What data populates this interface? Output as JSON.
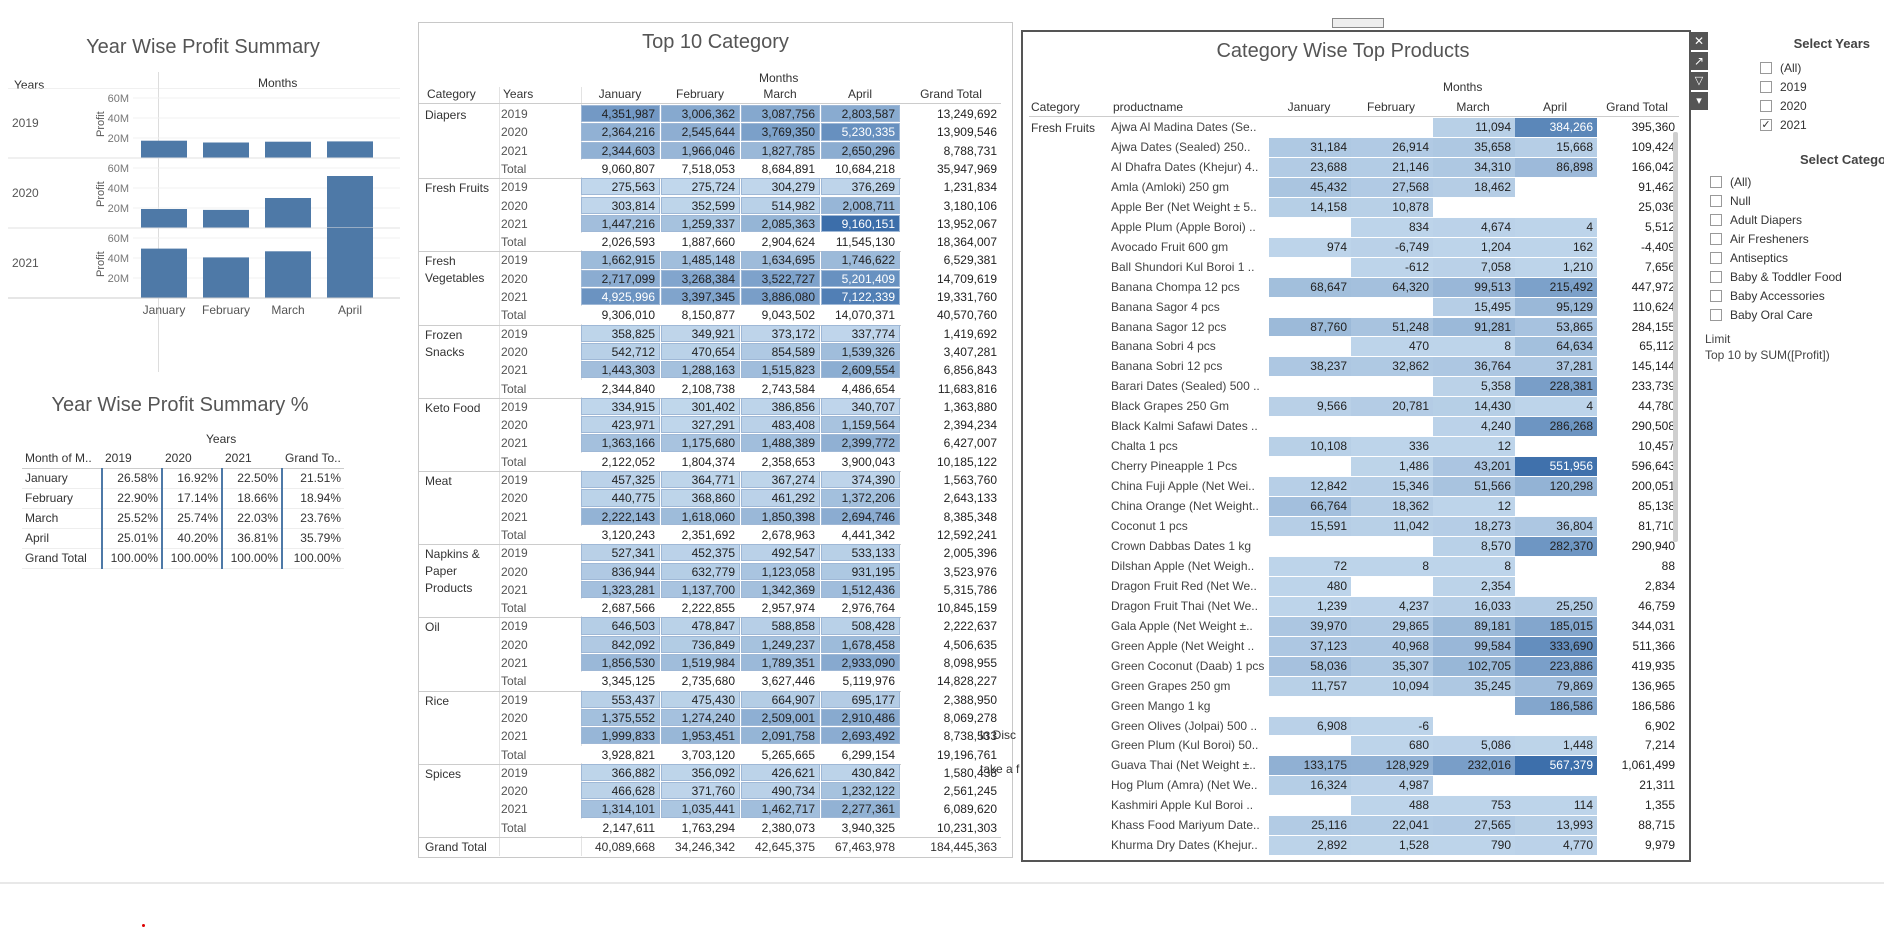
{
  "profit_summary": {
    "title": "Year Wise  Profit Summary",
    "col_years": "Years",
    "col_months": "Months",
    "y_label": "Profit",
    "y_ticks": [
      "60M",
      "40M",
      "20M"
    ],
    "months": [
      "January",
      "February",
      "March",
      "April"
    ],
    "years": [
      "2019",
      "2020",
      "2021"
    ],
    "bar_color": "#4e79a7"
  },
  "chart_data": {
    "type": "bar",
    "title": "Year Wise  Profit Summary",
    "ylabel": "Profit",
    "ylim": [
      0,
      70000000
    ],
    "categories": [
      "January",
      "February",
      "March",
      "April"
    ],
    "series": [
      {
        "name": "2019",
        "values": [
          17300000,
          15500000,
          16300000,
          16600000
        ]
      },
      {
        "name": "2020",
        "values": [
          19000000,
          18100000,
          30000000,
          52000000
        ]
      },
      {
        "name": "2021",
        "values": [
          49400000,
          40600000,
          46700000,
          73000000
        ]
      }
    ]
  },
  "pct_summary": {
    "title": "Year Wise  Profit Summary %",
    "years_label": "Years",
    "headers": [
      "Month of M..",
      "2019",
      "2020",
      "2021",
      "Grand To.."
    ],
    "rows": [
      [
        "January",
        "26.58%",
        "16.92%",
        "22.50%",
        "21.51%"
      ],
      [
        "February",
        "22.90%",
        "17.14%",
        "18.66%",
        "18.94%"
      ],
      [
        "March",
        "25.52%",
        "25.74%",
        "22.03%",
        "23.76%"
      ],
      [
        "April",
        "25.01%",
        "40.20%",
        "36.81%",
        "35.79%"
      ],
      [
        "Grand Total",
        "100.00%",
        "100.00%",
        "100.00%",
        "100.00%"
      ]
    ]
  },
  "top10": {
    "title": "Top 10 Category",
    "months_label": "Months",
    "headers": [
      "Category",
      "Years",
      "January",
      "February",
      "March",
      "April",
      "Grand Total"
    ],
    "groups": [
      {
        "category": "Diapers",
        "rows": [
          [
            "2019",
            "4,351,987",
            "3,006,362",
            "3,087,756",
            "2,803,587",
            "13,249,692"
          ],
          [
            "2020",
            "2,364,216",
            "2,545,644",
            "3,769,350",
            "5,230,335",
            "13,909,546"
          ],
          [
            "2021",
            "2,344,603",
            "1,966,046",
            "1,827,785",
            "2,650,296",
            "8,788,731"
          ],
          [
            "Total",
            "9,060,807",
            "7,518,053",
            "8,684,891",
            "10,684,218",
            "35,947,969"
          ]
        ]
      },
      {
        "category": "Fresh Fruits",
        "rows": [
          [
            "2019",
            "275,563",
            "275,724",
            "304,279",
            "376,269",
            "1,231,834"
          ],
          [
            "2020",
            "303,814",
            "352,599",
            "514,982",
            "2,008,711",
            "3,180,106"
          ],
          [
            "2021",
            "1,447,216",
            "1,259,337",
            "2,085,363",
            "9,160,151",
            "13,952,067"
          ],
          [
            "Total",
            "2,026,593",
            "1,887,660",
            "2,904,624",
            "11,545,130",
            "18,364,007"
          ]
        ]
      },
      {
        "category": "Fresh Vegetables",
        "rows": [
          [
            "2019",
            "1,662,915",
            "1,485,148",
            "1,634,695",
            "1,746,622",
            "6,529,381"
          ],
          [
            "2020",
            "2,717,099",
            "3,268,384",
            "3,522,727",
            "5,201,409",
            "14,709,619"
          ],
          [
            "2021",
            "4,925,996",
            "3,397,345",
            "3,886,080",
            "7,122,339",
            "19,331,760"
          ],
          [
            "Total",
            "9,306,010",
            "8,150,877",
            "9,043,502",
            "14,070,371",
            "40,570,760"
          ]
        ]
      },
      {
        "category": "Frozen Snacks",
        "rows": [
          [
            "2019",
            "358,825",
            "349,921",
            "373,172",
            "337,774",
            "1,419,692"
          ],
          [
            "2020",
            "542,712",
            "470,654",
            "854,589",
            "1,539,326",
            "3,407,281"
          ],
          [
            "2021",
            "1,443,303",
            "1,288,163",
            "1,515,823",
            "2,609,554",
            "6,856,843"
          ],
          [
            "Total",
            "2,344,840",
            "2,108,738",
            "2,743,584",
            "4,486,654",
            "11,683,816"
          ]
        ]
      },
      {
        "category": "Keto Food",
        "rows": [
          [
            "2019",
            "334,915",
            "301,402",
            "386,856",
            "340,707",
            "1,363,880"
          ],
          [
            "2020",
            "423,971",
            "327,291",
            "483,408",
            "1,159,564",
            "2,394,234"
          ],
          [
            "2021",
            "1,363,166",
            "1,175,680",
            "1,488,389",
            "2,399,772",
            "6,427,007"
          ],
          [
            "Total",
            "2,122,052",
            "1,804,374",
            "2,358,653",
            "3,900,043",
            "10,185,122"
          ]
        ]
      },
      {
        "category": "Meat",
        "rows": [
          [
            "2019",
            "457,325",
            "364,771",
            "367,274",
            "374,390",
            "1,563,760"
          ],
          [
            "2020",
            "440,775",
            "368,860",
            "461,292",
            "1,372,206",
            "2,643,133"
          ],
          [
            "2021",
            "2,222,143",
            "1,618,060",
            "1,850,398",
            "2,694,746",
            "8,385,348"
          ],
          [
            "Total",
            "3,120,243",
            "2,351,692",
            "2,678,963",
            "4,441,342",
            "12,592,241"
          ]
        ]
      },
      {
        "category": "Napkins & Paper Products",
        "rows": [
          [
            "2019",
            "527,341",
            "452,375",
            "492,547",
            "533,133",
            "2,005,396"
          ],
          [
            "2020",
            "836,944",
            "632,779",
            "1,123,058",
            "931,195",
            "3,523,976"
          ],
          [
            "2021",
            "1,323,281",
            "1,137,700",
            "1,342,369",
            "1,512,436",
            "5,315,786"
          ],
          [
            "Total",
            "2,687,566",
            "2,222,855",
            "2,957,974",
            "2,976,764",
            "10,845,159"
          ]
        ]
      },
      {
        "category": "Oil",
        "rows": [
          [
            "2019",
            "646,503",
            "478,847",
            "588,858",
            "508,428",
            "2,222,637"
          ],
          [
            "2020",
            "842,092",
            "736,849",
            "1,249,237",
            "1,678,458",
            "4,506,635"
          ],
          [
            "2021",
            "1,856,530",
            "1,519,984",
            "1,789,351",
            "2,933,090",
            "8,098,955"
          ],
          [
            "Total",
            "3,345,125",
            "2,735,680",
            "3,627,446",
            "5,119,976",
            "14,828,227"
          ]
        ]
      },
      {
        "category": "Rice",
        "rows": [
          [
            "2019",
            "553,437",
            "475,430",
            "664,907",
            "695,177",
            "2,388,950"
          ],
          [
            "2020",
            "1,375,552",
            "1,274,240",
            "2,509,001",
            "2,910,486",
            "8,069,278"
          ],
          [
            "2021",
            "1,999,833",
            "1,953,451",
            "2,091,758",
            "2,693,492",
            "8,738,533"
          ],
          [
            "Total",
            "3,928,821",
            "3,703,120",
            "5,265,665",
            "6,299,154",
            "19,196,761"
          ]
        ]
      },
      {
        "category": "Spices",
        "rows": [
          [
            "2019",
            "366,882",
            "356,092",
            "426,621",
            "430,842",
            "1,580,438"
          ],
          [
            "2020",
            "466,628",
            "371,760",
            "490,734",
            "1,232,122",
            "2,561,245"
          ],
          [
            "2021",
            "1,314,101",
            "1,035,441",
            "1,462,717",
            "2,277,361",
            "6,089,620"
          ],
          [
            "Total",
            "2,147,611",
            "1,763,294",
            "2,380,073",
            "3,940,325",
            "10,231,303"
          ]
        ]
      }
    ],
    "grand_total": [
      "Grand Total",
      "40,089,668",
      "34,246,342",
      "42,645,375",
      "67,463,978",
      "184,445,363"
    ],
    "overflow_text_1": "in Disc",
    "overflow_text_2": "take a f"
  },
  "products": {
    "title": "Category Wise Top Products",
    "months_label": "Months",
    "headers": [
      "Category",
      "productname",
      "January",
      "February",
      "March",
      "April",
      "Grand Total"
    ],
    "category": "Fresh Fruits",
    "rows": [
      [
        "Ajwa Al Madina Dates (Se..",
        "",
        "",
        "11,094",
        "384,266",
        "395,360"
      ],
      [
        "Ajwa Dates (Sealed)  250..",
        "31,184",
        "26,914",
        "35,658",
        "15,668",
        "109,424"
      ],
      [
        "Al Dhafra Dates (Khejur) 4..",
        "23,688",
        "21,146",
        "34,310",
        "86,898",
        "166,042"
      ],
      [
        "Amla (Amloki) 250 gm",
        "45,432",
        "27,568",
        "18,462",
        "",
        "91,462"
      ],
      [
        "Apple Ber (Net Weight ± 5..",
        "14,158",
        "10,878",
        "",
        "",
        "25,036"
      ],
      [
        "Apple Plum (Apple Boroi) ..",
        "",
        "834",
        "4,674",
        "4",
        "5,512"
      ],
      [
        "Avocado Fruit 600 gm",
        "974",
        "-6,749",
        "1,204",
        "162",
        "-4,409"
      ],
      [
        "Ball Shundori Kul Boroi 1 ..",
        "",
        "-612",
        "7,058",
        "1,210",
        "7,656"
      ],
      [
        "Banana Chompa 12 pcs",
        "68,647",
        "64,320",
        "99,513",
        "215,492",
        "447,972"
      ],
      [
        "Banana Sagor 4 pcs",
        "",
        "",
        "15,495",
        "95,129",
        "110,624"
      ],
      [
        "Banana Sagor 12 pcs",
        "87,760",
        "51,248",
        "91,281",
        "53,865",
        "284,155"
      ],
      [
        "Banana Sobri 4 pcs",
        "",
        "470",
        "8",
        "64,634",
        "65,112"
      ],
      [
        "Banana Sobri 12 pcs",
        "38,237",
        "32,862",
        "36,764",
        "37,281",
        "145,144"
      ],
      [
        "Barari Dates (Sealed) 500 ..",
        "",
        "",
        "5,358",
        "228,381",
        "233,739"
      ],
      [
        "Black Grapes 250 Gm",
        "9,566",
        "20,781",
        "14,430",
        "4",
        "44,780"
      ],
      [
        "Black Kalmi Safawi Dates ..",
        "",
        "",
        "4,240",
        "286,268",
        "290,508"
      ],
      [
        "Chalta 1 pcs",
        "10,108",
        "336",
        "12",
        "",
        "10,457"
      ],
      [
        "Cherry Pineapple  1 Pcs",
        "",
        "1,486",
        "43,201",
        "551,956",
        "596,643"
      ],
      [
        "China Fuji Apple (Net Wei..",
        "12,842",
        "15,346",
        "51,566",
        "120,298",
        "200,051"
      ],
      [
        "China Orange (Net Weight..",
        "66,764",
        "18,362",
        "12",
        "",
        "85,138"
      ],
      [
        "Coconut 1 pcs",
        "15,591",
        "11,042",
        "18,273",
        "36,804",
        "81,710"
      ],
      [
        "Crown Dabbas Dates 1 kg",
        "",
        "",
        "8,570",
        "282,370",
        "290,940"
      ],
      [
        "Dilshan Apple (Net Weigh..",
        "72",
        "8",
        "8",
        "",
        "88"
      ],
      [
        "Dragon Fruit Red (Net We..",
        "480",
        "",
        "2,354",
        "",
        "2,834"
      ],
      [
        "Dragon Fruit Thai (Net We..",
        "1,239",
        "4,237",
        "16,033",
        "25,250",
        "46,759"
      ],
      [
        "Gala Apple (Net Weight ±..",
        "39,970",
        "29,865",
        "89,181",
        "185,015",
        "344,031"
      ],
      [
        "Green Apple (Net Weight ..",
        "37,123",
        "40,968",
        "99,584",
        "333,690",
        "511,366"
      ],
      [
        "Green Coconut (Daab) 1 pcs",
        "58,036",
        "35,307",
        "102,705",
        "223,886",
        "419,935"
      ],
      [
        "Green Grapes   250 gm",
        "11,757",
        "10,094",
        "35,245",
        "79,869",
        "136,965"
      ],
      [
        "Green Mango 1 kg",
        "",
        "",
        "",
        "186,586",
        "186,586"
      ],
      [
        "Green Olives (Jolpai) 500 ..",
        "6,908",
        "-6",
        "",
        "",
        "6,902"
      ],
      [
        "Green Plum (Kul Boroi) 50..",
        "",
        "680",
        "5,086",
        "1,448",
        "7,214"
      ],
      [
        "Guava Thai (Net Weight ±..",
        "133,175",
        "128,929",
        "232,016",
        "567,379",
        "1,061,499"
      ],
      [
        "Hog Plum (Amra) (Net We..",
        "16,324",
        "4,987",
        "",
        "",
        "21,311"
      ],
      [
        "Kashmiri Apple Kul Boroi ..",
        "",
        "488",
        "753",
        "114",
        "1,355"
      ],
      [
        "Khass Food Mariyum Date..",
        "25,116",
        "22,041",
        "27,565",
        "13,993",
        "88,715"
      ],
      [
        "Khurma Dry Dates (Khejur..",
        "2,892",
        "1,528",
        "790",
        "4,770",
        "9,979"
      ]
    ]
  },
  "filters": {
    "years_title": "Select Years",
    "years": [
      {
        "label": "(All)",
        "checked": false
      },
      {
        "label": "2019",
        "checked": false
      },
      {
        "label": "2020",
        "checked": false
      },
      {
        "label": "2021",
        "checked": true
      }
    ],
    "category_title": "Select Catego",
    "categories": [
      "(All)",
      "Null",
      "Adult Diapers",
      "Air Fresheners",
      "Antiseptics",
      "Baby & Toddler Food",
      "Baby Accessories",
      "Baby Oral Care"
    ],
    "limit_title": "Limit",
    "limit_value": "Top 10 by SUM([Profit])",
    "check_mark": "✓"
  },
  "toolbar": {
    "close": "✕",
    "popout": "↗",
    "filter": "▽",
    "menu": "▾"
  }
}
